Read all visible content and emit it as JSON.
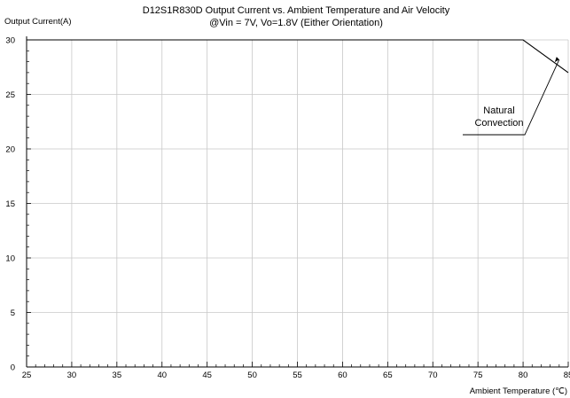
{
  "chart_data": {
    "type": "line",
    "title": "D12S1R830D Output Current vs. Ambient Temperature and Air Velocity",
    "subtitle": "@Vin = 7V, Vo=1.8V (Either Orientation)",
    "xlabel": "Ambient Temperature (℃)",
    "ylabel": "Output Current(A)",
    "xlim": [
      25,
      85
    ],
    "ylim": [
      0,
      30
    ],
    "xticks": [
      25,
      30,
      35,
      40,
      45,
      50,
      55,
      60,
      65,
      70,
      75,
      80,
      85
    ],
    "yticks": [
      0,
      5,
      10,
      15,
      20,
      25,
      30
    ],
    "grid": true,
    "series": [
      {
        "name": "Natural Convection",
        "x": [
          25,
          80,
          85
        ],
        "y": [
          30,
          30,
          27
        ]
      }
    ],
    "annotations": [
      {
        "text_lines": [
          "Natural",
          "Convection"
        ],
        "points_to": {
          "x": 84,
          "y": 28.2
        }
      }
    ]
  }
}
